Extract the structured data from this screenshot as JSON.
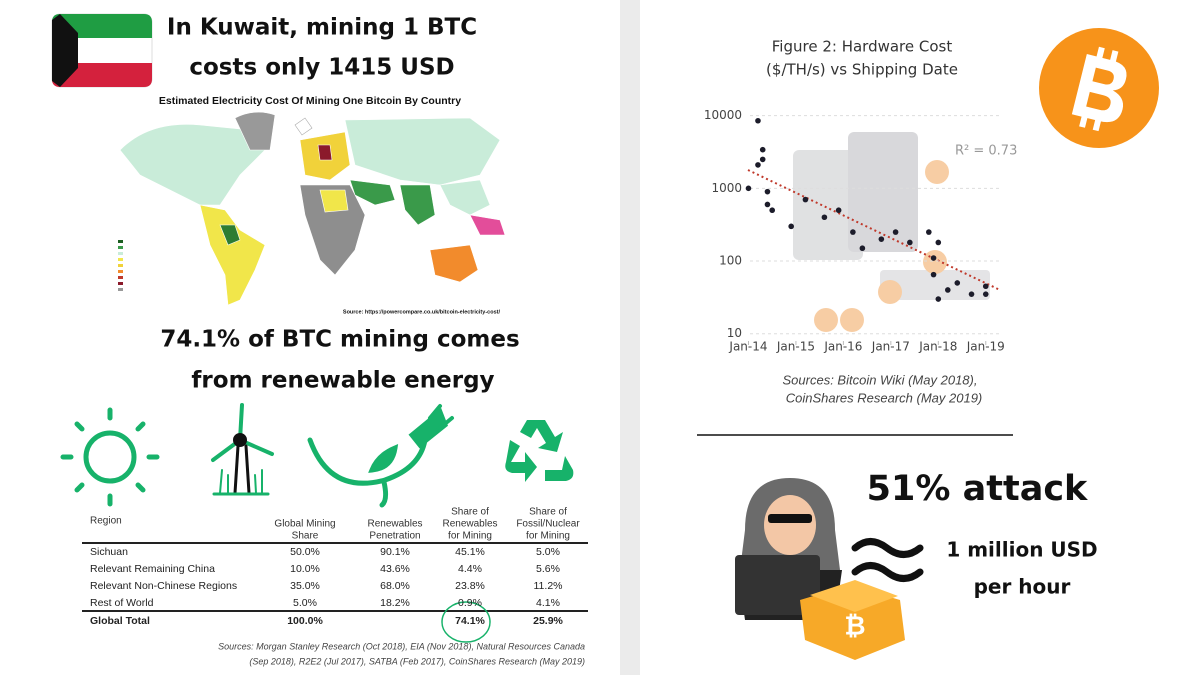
{
  "left": {
    "headline": [
      "In Kuwait, mining 1 BTC",
      "costs only 1415 USD"
    ],
    "map": {
      "title": "Estimated Electricity Cost Of Mining One Bitcoin By Country",
      "source": "Source: https://powercompare.co.uk/bitcoin-electricity-cost/"
    },
    "renewable_headline": [
      "74.1% of BTC mining comes",
      "from renewable energy"
    ],
    "table": {
      "region_header": "Region",
      "columns": [
        [
          "Global Mining",
          "Share"
        ],
        [
          "Renewables",
          "Penetration"
        ],
        [
          "Share of",
          "Renewables",
          "for Mining"
        ],
        [
          "Share of",
          "Fossil/Nuclear",
          "for Mining"
        ]
      ],
      "rows": [
        [
          "Sichuan",
          "50.0%",
          "90.1%",
          "45.1%",
          "5.0%"
        ],
        [
          "Relevant Remaining China",
          "10.0%",
          "43.6%",
          "4.4%",
          "5.6%"
        ],
        [
          "Relevant Non-Chinese Regions",
          "35.0%",
          "68.0%",
          "23.8%",
          "11.2%"
        ],
        [
          "Rest of World",
          "5.0%",
          "18.2%",
          "0.9%",
          "4.1%"
        ]
      ],
      "total": {
        "label": "Global Total",
        "global_share": "100.0%",
        "renewables_share": "74.1%",
        "fossil_share": "25.9%"
      },
      "sources": [
        "Sources: Morgan Stanley Research (Oct 2018), EIA (Nov 2018), Natural Resources Canada",
        "(Sep 2018), R2E2 (Jul 2017), SATBA (Feb 2017), CoinShares Research (May 2019)"
      ]
    }
  },
  "chart_data": {
    "type": "scatter",
    "title": [
      "Figure 2: Hardware Cost",
      "($/TH/s) vs Shipping Date"
    ],
    "annotation": "R² = 0.73",
    "x": [
      2014.2,
      2014.3,
      2014.3,
      2014.2,
      2014.0,
      2014.4,
      2014.5,
      2014.4,
      2014.9,
      2015.2,
      2015.6,
      2015.9,
      2016.2,
      2016.4,
      2016.8,
      2017.1,
      2017.4,
      2017.8,
      2017.9,
      2018.0,
      2017.9,
      2018.0,
      2018.2,
      2018.4,
      2018.7,
      2019.0,
      2019.0
    ],
    "values": [
      8500,
      3400,
      2500,
      2100,
      1000,
      900,
      500,
      600,
      300,
      700,
      400,
      500,
      250,
      150,
      200,
      250,
      180,
      250,
      110,
      180,
      65,
      30,
      40,
      50,
      35,
      45,
      35
    ],
    "color": "#1c1c2a",
    "xlim": [
      2013.4,
      2019.3
    ],
    "xticks": [
      {
        "value": 2014,
        "label": "Jan-14"
      },
      {
        "value": 2015,
        "label": "Jan-15"
      },
      {
        "value": 2016,
        "label": "Jan-16"
      },
      {
        "value": 2017,
        "label": "Jan-17"
      },
      {
        "value": 2018,
        "label": "Jan-18"
      },
      {
        "value": 2019,
        "label": "Jan-19"
      }
    ],
    "ylim": [
      7,
      14000
    ],
    "yticks": [
      10,
      100,
      1000,
      10000
    ],
    "log_scale_y": true,
    "grid": true,
    "sources": [
      "Sources: Bitcoin Wiki (May 2018),",
      "CoinShares Research (May 2019)"
    ]
  },
  "right": {
    "attack": "51% attack",
    "cost": [
      "1 million USD",
      "per hour"
    ]
  }
}
